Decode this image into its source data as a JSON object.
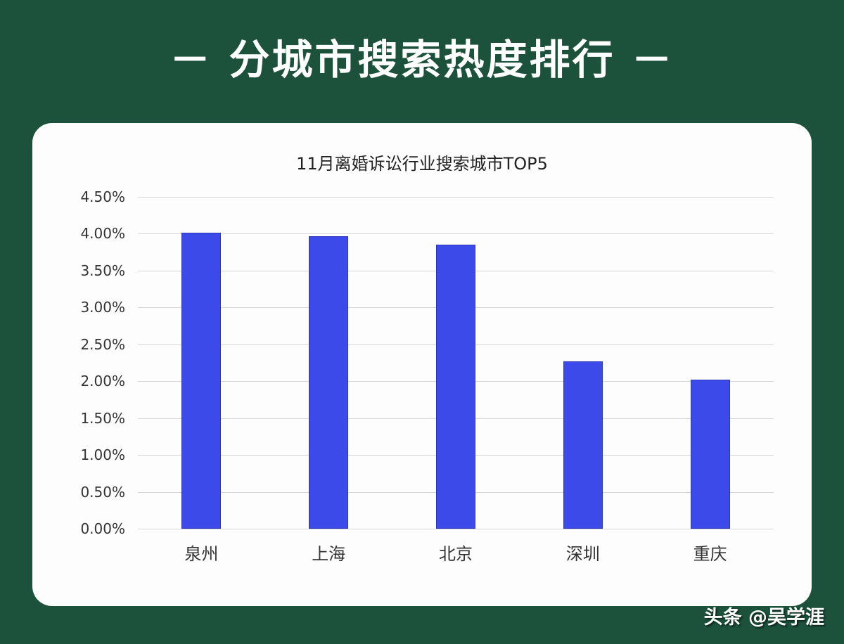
{
  "header": {
    "title": "－ 分城市搜索热度排行 －"
  },
  "watermark": "头条 @吴学涯",
  "colors": {
    "background": "#1c513c",
    "card": "#fdfdfd",
    "bar": "#3b4ae8",
    "grid": "#d6d6d6"
  },
  "chart_data": {
    "type": "bar",
    "title": "11月离婚诉讼行业搜索城市TOP5",
    "categories": [
      "泉州",
      "上海",
      "北京",
      "深圳",
      "重庆"
    ],
    "values": [
      4.01,
      3.97,
      3.85,
      2.27,
      2.02
    ],
    "unit": "%",
    "xlabel": "",
    "ylabel": "",
    "ylim": [
      0,
      4.5
    ],
    "yticks": [
      "0.00%",
      "0.50%",
      "1.00%",
      "1.50%",
      "2.00%",
      "2.50%",
      "3.00%",
      "3.50%",
      "4.00%",
      "4.50%"
    ],
    "grid": true,
    "legend": "none"
  }
}
